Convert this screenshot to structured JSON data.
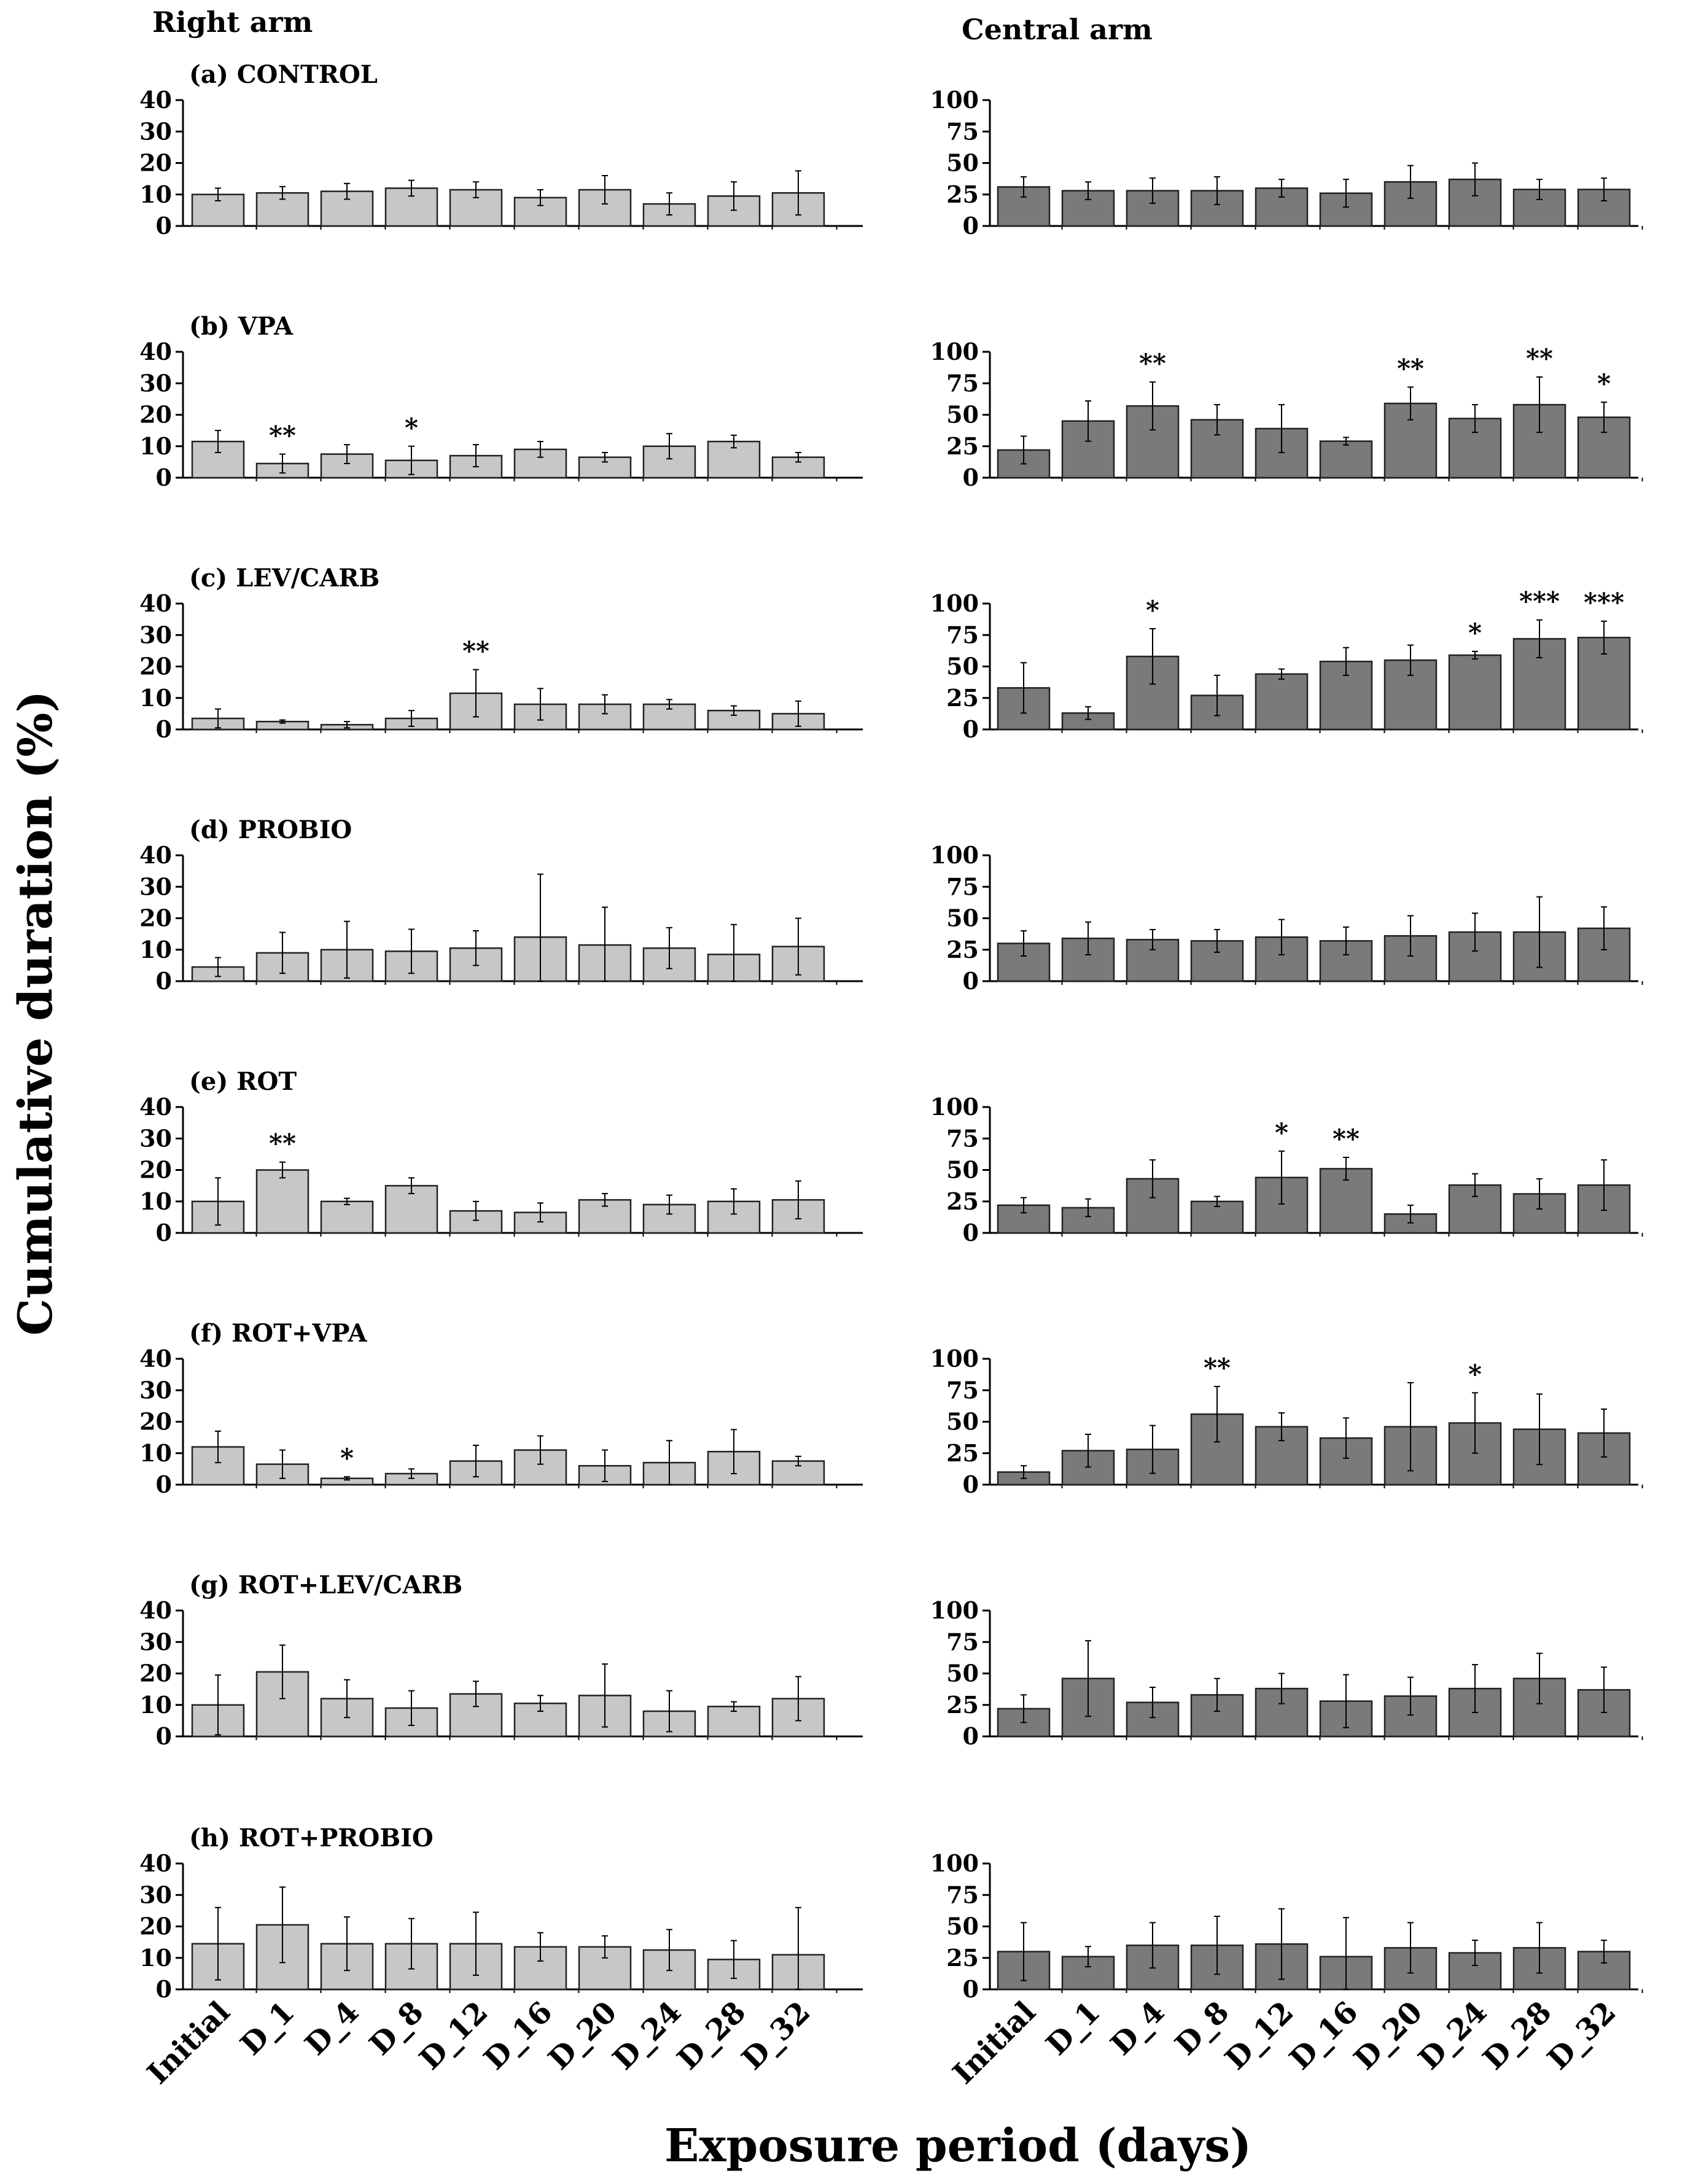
{
  "figure": {
    "columns": [
      "Right arm",
      "Central arm"
    ],
    "ylabel": "Cumulative duration (%)",
    "xlabel": "Exposure period (days)",
    "left_color": "#c7c7c7",
    "right_color": "#7a7a7a"
  },
  "chart_data": [
    {
      "type": "bar",
      "panel": "(a) CONTROL",
      "arm": "Right arm",
      "categories": [
        "Initial",
        "D_1",
        "D_4",
        "D_8",
        "D_12",
        "D_16",
        "D_20",
        "D_24",
        "D_28",
        "D_32"
      ],
      "values": [
        10,
        10.5,
        11,
        12,
        11.5,
        9,
        11.5,
        7,
        9.5,
        10.5
      ],
      "errors": [
        2,
        2,
        2.5,
        2.5,
        2.5,
        2.5,
        4.5,
        3.5,
        4.5,
        7
      ],
      "significance": [
        "",
        "",
        "",
        "",
        "",
        "",
        "",
        "",
        "",
        ""
      ],
      "yticks": [
        0,
        10,
        20,
        30,
        40
      ],
      "ylim": [
        0,
        40
      ]
    },
    {
      "type": "bar",
      "panel": "(a) CONTROL",
      "arm": "Central arm",
      "categories": [
        "Initial",
        "D_1",
        "D_4",
        "D_8",
        "D_12",
        "D_16",
        "D_20",
        "D_24",
        "D_28",
        "D_32"
      ],
      "values": [
        31,
        28,
        28,
        28,
        30,
        26,
        35,
        37,
        29,
        29
      ],
      "errors": [
        8,
        7,
        10,
        11,
        7,
        11,
        13,
        13,
        8,
        9
      ],
      "significance": [
        "",
        "",
        "",
        "",
        "",
        "",
        "",
        "",
        "",
        ""
      ],
      "yticks": [
        0,
        25,
        50,
        75,
        100
      ],
      "ylim": [
        0,
        100
      ]
    },
    {
      "type": "bar",
      "panel": "(b) VPA",
      "arm": "Right arm",
      "categories": [
        "Initial",
        "D_1",
        "D_4",
        "D_8",
        "D_12",
        "D_16",
        "D_20",
        "D_24",
        "D_28",
        "D_32"
      ],
      "values": [
        11.5,
        4.5,
        7.5,
        5.5,
        7,
        9,
        6.5,
        10,
        11.5,
        6.5
      ],
      "errors": [
        3.5,
        3,
        3,
        4.5,
        3.5,
        2.5,
        1.5,
        4,
        2,
        1.5
      ],
      "significance": [
        "",
        "**",
        "",
        "*",
        "",
        "",
        "",
        "",
        "",
        ""
      ],
      "yticks": [
        0,
        10,
        20,
        30,
        40
      ],
      "ylim": [
        0,
        40
      ]
    },
    {
      "type": "bar",
      "panel": "(b) VPA",
      "arm": "Central arm",
      "categories": [
        "Initial",
        "D_1",
        "D_4",
        "D_8",
        "D_12",
        "D_16",
        "D_20",
        "D_24",
        "D_28",
        "D_32"
      ],
      "values": [
        22,
        45,
        57,
        46,
        39,
        29,
        59,
        47,
        58,
        48
      ],
      "errors": [
        11,
        16,
        19,
        12,
        19,
        3,
        13,
        11,
        22,
        12
      ],
      "significance": [
        "",
        "",
        "**",
        "",
        "",
        "",
        "**",
        "",
        "**",
        "*"
      ],
      "yticks": [
        0,
        25,
        50,
        75,
        100
      ],
      "ylim": [
        0,
        100
      ]
    },
    {
      "type": "bar",
      "panel": "(c) LEV/CARB",
      "arm": "Right arm",
      "categories": [
        "Initial",
        "D_1",
        "D_4",
        "D_8",
        "D_12",
        "D_16",
        "D_20",
        "D_24",
        "D_28",
        "D_32"
      ],
      "values": [
        3.5,
        2.5,
        1.5,
        3.5,
        11.5,
        8,
        8,
        8,
        6,
        5
      ],
      "errors": [
        3,
        0.5,
        1,
        2.5,
        7.5,
        5,
        3,
        1.5,
        1.5,
        4
      ],
      "significance": [
        "",
        "",
        "",
        "",
        "**",
        "",
        "",
        "",
        "",
        ""
      ],
      "yticks": [
        0,
        10,
        20,
        30,
        40
      ],
      "ylim": [
        0,
        40
      ]
    },
    {
      "type": "bar",
      "panel": "(c) LEV/CARB",
      "arm": "Central arm",
      "categories": [
        "Initial",
        "D_1",
        "D_4",
        "D_8",
        "D_12",
        "D_16",
        "D_20",
        "D_24",
        "D_28",
        "D_32"
      ],
      "values": [
        33,
        13,
        58,
        27,
        44,
        54,
        55,
        59,
        72,
        73
      ],
      "errors": [
        20,
        5,
        22,
        16,
        4,
        11,
        12,
        3,
        15,
        13
      ],
      "significance": [
        "",
        "",
        "*",
        "",
        "",
        "",
        "",
        "*",
        "***",
        "***"
      ],
      "yticks": [
        0,
        25,
        50,
        75,
        100
      ],
      "ylim": [
        0,
        100
      ]
    },
    {
      "type": "bar",
      "panel": "(d) PROBIO",
      "arm": "Right arm",
      "categories": [
        "Initial",
        "D_1",
        "D_4",
        "D_8",
        "D_12",
        "D_16",
        "D_20",
        "D_24",
        "D_28",
        "D_32"
      ],
      "values": [
        4.5,
        9,
        10,
        9.5,
        10.5,
        14,
        11.5,
        10.5,
        8.5,
        11
      ],
      "errors": [
        3,
        6.5,
        9,
        7,
        5.5,
        20,
        12,
        6.5,
        9.5,
        9
      ],
      "significance": [
        "",
        "",
        "",
        "",
        "",
        "",
        "",
        "",
        "",
        ""
      ],
      "yticks": [
        0,
        10,
        20,
        30,
        40
      ],
      "ylim": [
        0,
        40
      ]
    },
    {
      "type": "bar",
      "panel": "(d) PROBIO",
      "arm": "Central arm",
      "categories": [
        "Initial",
        "D_1",
        "D_4",
        "D_8",
        "D_12",
        "D_16",
        "D_20",
        "D_24",
        "D_28",
        "D_32"
      ],
      "values": [
        30,
        34,
        33,
        32,
        35,
        32,
        36,
        39,
        39,
        42
      ],
      "errors": [
        10,
        13,
        8,
        9,
        14,
        11,
        16,
        15,
        28,
        17
      ],
      "significance": [
        "",
        "",
        "",
        "",
        "",
        "",
        "",
        "",
        "",
        ""
      ],
      "yticks": [
        0,
        25,
        50,
        75,
        100
      ],
      "ylim": [
        0,
        100
      ]
    },
    {
      "type": "bar",
      "panel": "(e) ROT",
      "arm": "Right arm",
      "categories": [
        "Initial",
        "D_1",
        "D_4",
        "D_8",
        "D_12",
        "D_16",
        "D_20",
        "D_24",
        "D_28",
        "D_32"
      ],
      "values": [
        10,
        20,
        10,
        15,
        7,
        6.5,
        10.5,
        9,
        10,
        10.5
      ],
      "errors": [
        7.5,
        2.5,
        1,
        2.5,
        3,
        3,
        2,
        3,
        4,
        6
      ],
      "significance": [
        "",
        "**",
        "",
        "",
        "",
        "",
        "",
        "",
        "",
        ""
      ],
      "yticks": [
        0,
        10,
        20,
        30,
        40
      ],
      "ylim": [
        0,
        40
      ]
    },
    {
      "type": "bar",
      "panel": "(e) ROT",
      "arm": "Central arm",
      "categories": [
        "Initial",
        "D_1",
        "D_4",
        "D_8",
        "D_12",
        "D_16",
        "D_20",
        "D_24",
        "D_28",
        "D_32"
      ],
      "values": [
        22,
        20,
        43,
        25,
        44,
        51,
        15,
        38,
        31,
        38
      ],
      "errors": [
        6,
        7,
        15,
        4,
        21,
        9,
        7,
        9,
        12,
        20
      ],
      "significance": [
        "",
        "",
        "",
        "",
        "*",
        "**",
        "",
        "",
        "",
        ""
      ],
      "yticks": [
        0,
        25,
        50,
        75,
        100
      ],
      "ylim": [
        0,
        100
      ]
    },
    {
      "type": "bar",
      "panel": "(f) ROT+VPA",
      "arm": "Right arm",
      "categories": [
        "Initial",
        "D_1",
        "D_4",
        "D_8",
        "D_12",
        "D_16",
        "D_20",
        "D_24",
        "D_28",
        "D_32"
      ],
      "values": [
        12,
        6.5,
        2,
        3.5,
        7.5,
        11,
        6,
        7,
        10.5,
        7.5
      ],
      "errors": [
        5,
        4.5,
        0.5,
        1.5,
        5,
        4.5,
        5,
        7,
        7,
        1.5
      ],
      "significance": [
        "",
        "",
        "*",
        "",
        "",
        "",
        "",
        "",
        "",
        ""
      ],
      "yticks": [
        0,
        10,
        20,
        30,
        40
      ],
      "ylim": [
        0,
        40
      ]
    },
    {
      "type": "bar",
      "panel": "(f) ROT+VPA",
      "arm": "Central arm",
      "categories": [
        "Initial",
        "D_1",
        "D_4",
        "D_8",
        "D_12",
        "D_16",
        "D_20",
        "D_24",
        "D_28",
        "D_32"
      ],
      "values": [
        10,
        27,
        28,
        56,
        46,
        37,
        46,
        49,
        44,
        41
      ],
      "errors": [
        5,
        13,
        19,
        22,
        11,
        16,
        35,
        24,
        28,
        19
      ],
      "significance": [
        "",
        "",
        "",
        "**",
        "",
        "",
        "",
        "*",
        "",
        ""
      ],
      "yticks": [
        0,
        25,
        50,
        75,
        100
      ],
      "ylim": [
        0,
        100
      ]
    },
    {
      "type": "bar",
      "panel": "(g) ROT+LEV/CARB",
      "arm": "Right arm",
      "categories": [
        "Initial",
        "D_1",
        "D_4",
        "D_8",
        "D_12",
        "D_16",
        "D_20",
        "D_24",
        "D_28",
        "D_32"
      ],
      "values": [
        10,
        20.5,
        12,
        9,
        13.5,
        10.5,
        13,
        8,
        9.5,
        12
      ],
      "errors": [
        9.5,
        8.5,
        6,
        5.5,
        4,
        2.5,
        10,
        6.5,
        1.5,
        7
      ],
      "significance": [
        "",
        "",
        "",
        "",
        "",
        "",
        "",
        "",
        "",
        ""
      ],
      "yticks": [
        0,
        10,
        20,
        30,
        40
      ],
      "ylim": [
        0,
        40
      ]
    },
    {
      "type": "bar",
      "panel": "(g) ROT+LEV/CARB",
      "arm": "Central arm",
      "categories": [
        "Initial",
        "D_1",
        "D_4",
        "D_8",
        "D_12",
        "D_16",
        "D_20",
        "D_24",
        "D_28",
        "D_32"
      ],
      "values": [
        22,
        46,
        27,
        33,
        38,
        28,
        32,
        38,
        46,
        37
      ],
      "errors": [
        11,
        30,
        12,
        13,
        12,
        21,
        15,
        19,
        20,
        18
      ],
      "significance": [
        "",
        "",
        "",
        "",
        "",
        "",
        "",
        "",
        "",
        ""
      ],
      "yticks": [
        0,
        25,
        50,
        75,
        100
      ],
      "ylim": [
        0,
        100
      ]
    },
    {
      "type": "bar",
      "panel": "(h) ROT+PROBIO",
      "arm": "Right arm",
      "categories": [
        "Initial",
        "D_1",
        "D_4",
        "D_8",
        "D_12",
        "D_16",
        "D_20",
        "D_24",
        "D_28",
        "D_32"
      ],
      "values": [
        14.5,
        20.5,
        14.5,
        14.5,
        14.5,
        13.5,
        13.5,
        12.5,
        9.5,
        11
      ],
      "errors": [
        11.5,
        12,
        8.5,
        8,
        10,
        4.5,
        3.5,
        6.5,
        6,
        15
      ],
      "significance": [
        "",
        "",
        "",
        "",
        "",
        "",
        "",
        "",
        "",
        ""
      ],
      "yticks": [
        0,
        10,
        20,
        30,
        40
      ],
      "ylim": [
        0,
        40
      ]
    },
    {
      "type": "bar",
      "panel": "(h) ROT+PROBIO",
      "arm": "Central arm",
      "categories": [
        "Initial",
        "D_1",
        "D_4",
        "D_8",
        "D_12",
        "D_16",
        "D_20",
        "D_24",
        "D_28",
        "D_32"
      ],
      "values": [
        30,
        26,
        35,
        35,
        36,
        26,
        33,
        29,
        33,
        30
      ],
      "errors": [
        23,
        8,
        18,
        23,
        28,
        31,
        20,
        10,
        20,
        9
      ],
      "significance": [
        "",
        "",
        "",
        "",
        "",
        "",
        "",
        "",
        "",
        ""
      ],
      "yticks": [
        0,
        25,
        50,
        75,
        100
      ],
      "ylim": [
        0,
        100
      ]
    }
  ]
}
